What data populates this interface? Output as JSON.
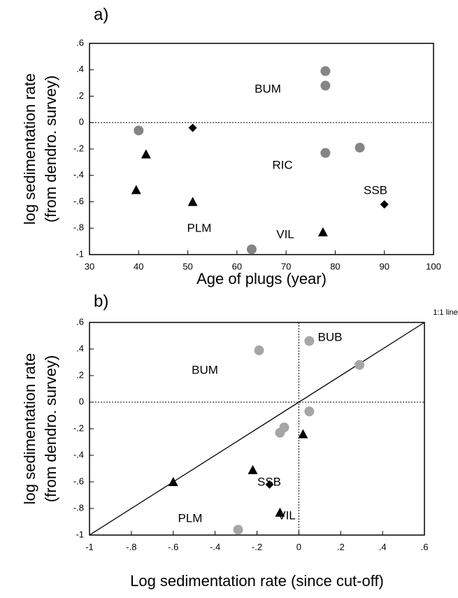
{
  "chart_data": [
    {
      "type": "scatter",
      "panel_label": "a)",
      "xlabel": "Age of plugs (year)",
      "ylabel": [
        "log sedimentation  rate",
        "(from dendro. survey)"
      ],
      "xlim": [
        30,
        100
      ],
      "xticks": [
        30,
        40,
        50,
        60,
        70,
        80,
        90,
        100
      ],
      "ylim": [
        -1,
        0.6
      ],
      "yticks": [
        {
          "value": 0.6,
          "label": ".6"
        },
        {
          "value": 0.4,
          "label": ".4"
        },
        {
          "value": 0.2,
          "label": ".2"
        },
        0,
        {
          "value": -0.2,
          "label": "-.2"
        },
        {
          "value": -0.4,
          "label": "-.4"
        },
        {
          "value": -0.6,
          "label": "-.6"
        },
        {
          "value": -0.8,
          "label": "-.8"
        },
        -1
      ],
      "hlines": [
        0
      ],
      "series": [
        {
          "marker": "circle",
          "color": "#858585",
          "x": [
            78,
            78,
            40,
            78,
            85,
            63
          ],
          "values": [
            0.39,
            0.28,
            -0.06,
            -0.23,
            -0.19,
            -0.96
          ]
        },
        {
          "marker": "triangle",
          "color": "#000000",
          "x": [
            41.5,
            39.5,
            51,
            77.5
          ],
          "values": [
            -0.24,
            -0.51,
            -0.6,
            -0.83
          ]
        },
        {
          "marker": "diamond",
          "color": "#000000",
          "x": [
            51,
            90
          ],
          "values": [
            -0.04,
            -0.62
          ]
        }
      ],
      "annotations": [
        "BUM",
        "RIC",
        "SSB",
        "VIL",
        "PLM"
      ]
    },
    {
      "type": "scatter",
      "panel_label": "b)",
      "xlabel": "Log sedimentation rate (since cut-off)",
      "ylabel": [
        "log sedimentation  rate",
        "(from dendro. survey)"
      ],
      "xlim": [
        -1,
        0.6
      ],
      "xticks": [
        -1,
        {
          "value": -0.8,
          "label": "-.8"
        },
        {
          "value": -0.6,
          "label": "-.6"
        },
        {
          "value": -0.4,
          "label": "-.4"
        },
        {
          "value": -0.2,
          "label": "-.2"
        },
        0,
        {
          "value": 0.2,
          "label": ".2"
        },
        {
          "value": 0.4,
          "label": ".4"
        },
        {
          "value": 0.6,
          "label": ".6"
        }
      ],
      "ylim": [
        -1,
        0.6
      ],
      "yticks": [
        {
          "value": 0.6,
          "label": ".6"
        },
        {
          "value": 0.4,
          "label": ".4"
        },
        {
          "value": 0.2,
          "label": ".2"
        },
        0,
        {
          "value": -0.2,
          "label": "-.2"
        },
        {
          "value": -0.4,
          "label": "-.4"
        },
        {
          "value": -0.6,
          "label": "-.6"
        },
        {
          "value": -0.8,
          "label": "-.8"
        },
        -1
      ],
      "hlines": [
        0
      ],
      "vlines": [
        0
      ],
      "identity_line": true,
      "identity_label": "1:1 line",
      "series": [
        {
          "marker": "circle",
          "color": "#a6a6a6",
          "x": [
            -0.19,
            0.05,
            0.29,
            0.05,
            -0.07,
            -0.09,
            -0.29
          ],
          "values": [
            0.39,
            0.46,
            0.28,
            -0.07,
            -0.19,
            -0.23,
            -0.96
          ]
        },
        {
          "marker": "triangle",
          "color": "#000000",
          "x": [
            0.02,
            -0.22,
            -0.6,
            -0.09
          ],
          "values": [
            -0.24,
            -0.51,
            -0.6,
            -0.83
          ]
        },
        {
          "marker": "diamond",
          "color": "#000000",
          "x": [
            -0.14
          ],
          "values": [
            -0.62
          ]
        }
      ],
      "annotations": [
        "BUM",
        "BUB",
        "SSB",
        "VIL",
        "PLM"
      ]
    }
  ]
}
